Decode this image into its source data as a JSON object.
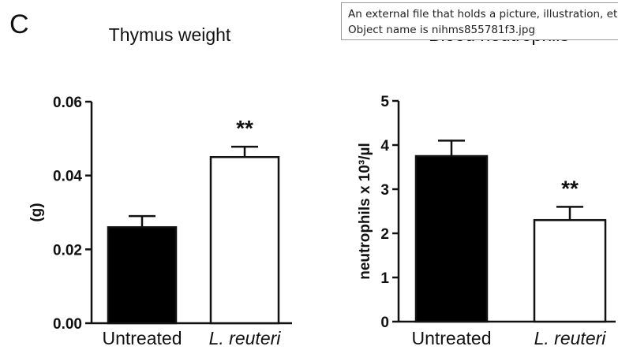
{
  "panel_label": "C",
  "tooltip": {
    "line1": "An external file that holds a picture, illustration, etc.",
    "line2": "Object name is nihms855781f3.jpg"
  },
  "colors": {
    "black_bar": "#000000",
    "white_bar": "#ffffff",
    "axis": "#111111",
    "tooltip_border": "#9a9a9a"
  },
  "chart_data": [
    {
      "type": "bar",
      "title": "Thymus weight",
      "ylabel": "(g)",
      "xlabel": "",
      "categories": [
        "Untreated",
        "L. reuteri"
      ],
      "values": [
        0.026,
        0.045
      ],
      "errors": [
        0.003,
        0.0028
      ],
      "bar_colors": [
        "#000000",
        "#ffffff"
      ],
      "significance": [
        "",
        "**"
      ],
      "ylim": [
        0,
        0.06
      ],
      "yticks": [
        "0.00",
        "0.02",
        "0.04",
        "0.06"
      ],
      "grid": false
    },
    {
      "type": "bar",
      "title": "Blood neutrophils",
      "ylabel": "neutrophils x 10³/µl",
      "xlabel": "",
      "categories": [
        "Untreated",
        "L. reuteri"
      ],
      "values": [
        3.75,
        2.3
      ],
      "errors": [
        0.35,
        0.3
      ],
      "bar_colors": [
        "#000000",
        "#ffffff"
      ],
      "significance": [
        "",
        "**"
      ],
      "ylim": [
        0,
        5
      ],
      "yticks": [
        "0",
        "1",
        "2",
        "3",
        "4",
        "5"
      ],
      "grid": false
    }
  ]
}
